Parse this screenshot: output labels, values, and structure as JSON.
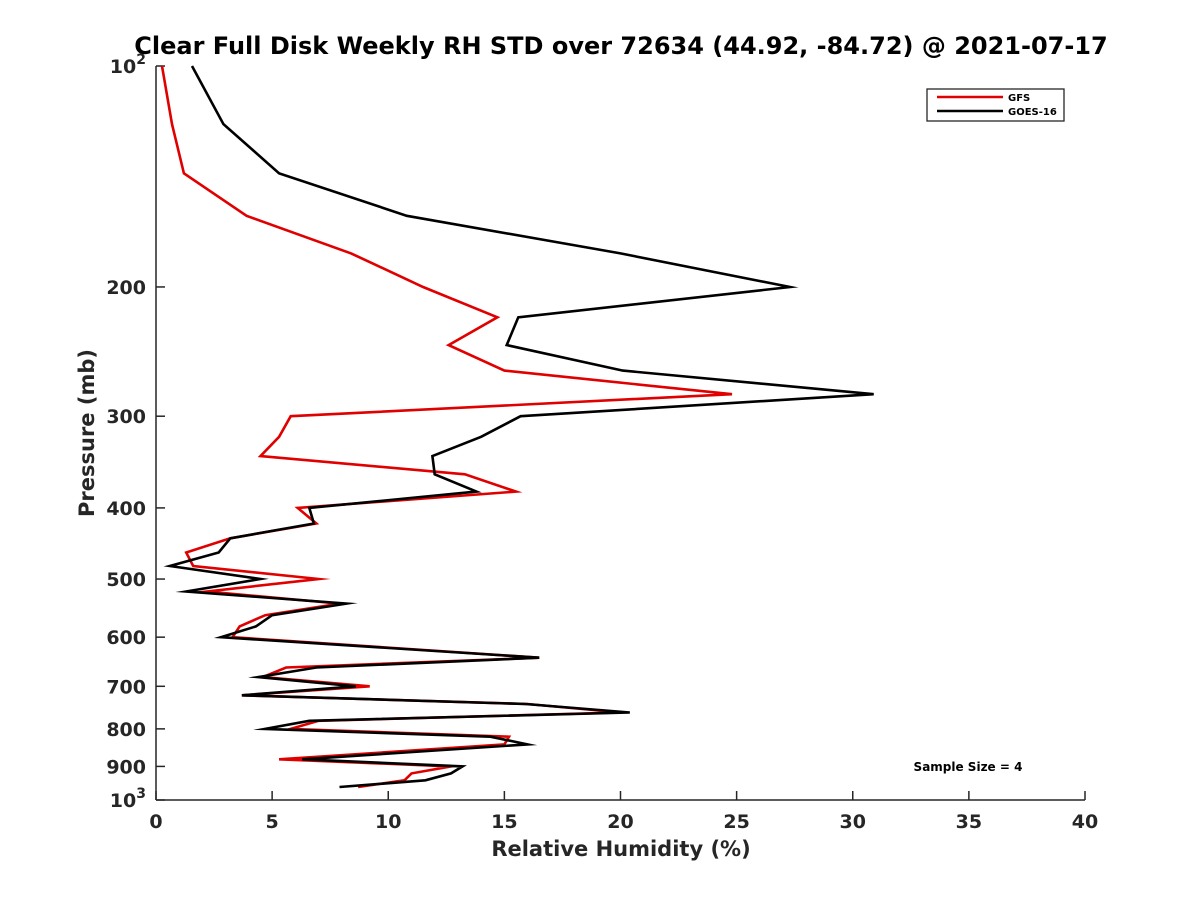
{
  "chart_data": {
    "type": "line",
    "title": "Clear Full Disk Weekly RH STD over 72634 (44.92, -84.72) @ 2021-07-17",
    "xlabel": "Relative Humidity (%)",
    "ylabel": "Pressure (mb)",
    "xlim": [
      0,
      40
    ],
    "ylim": [
      100,
      1000
    ],
    "yscale": "log",
    "yreversed": true,
    "grid": false,
    "x_ticks": [
      0,
      5,
      10,
      15,
      20,
      25,
      30,
      35,
      40
    ],
    "x_tick_labels": [
      "0",
      "5",
      "10",
      "15",
      "20",
      "25",
      "30",
      "35",
      "40"
    ],
    "y_ticks": [
      100,
      200,
      300,
      400,
      500,
      600,
      700,
      800,
      900,
      1000
    ],
    "y_tick_labels": [
      "10^2",
      "200",
      "300",
      "400",
      "500",
      "600",
      "700",
      "800",
      "900",
      "10^3"
    ],
    "legend_position": "top-right",
    "annotation": "Sample Size = 4",
    "series": [
      {
        "name": "GFS",
        "color": "#e00000",
        "pressure": [
          100,
          120,
          140,
          160,
          180,
          200,
          220,
          240,
          260,
          280,
          300,
          320,
          340,
          360,
          380,
          400,
          420,
          440,
          460,
          480,
          500,
          520,
          540,
          560,
          580,
          600,
          640,
          660,
          680,
          700,
          720,
          740,
          760,
          780,
          800,
          820,
          840,
          880,
          900,
          920,
          940,
          960
        ],
        "values": [
          0.26,
          0.69,
          1.2,
          3.9,
          8.4,
          11.5,
          14.7,
          12.6,
          15.0,
          24.8,
          5.8,
          5.3,
          4.5,
          13.3,
          15.5,
          6.1,
          6.9,
          3.2,
          1.3,
          1.6,
          7.0,
          2.2,
          7.9,
          4.7,
          3.6,
          3.3,
          16.5,
          5.6,
          4.6,
          9.2,
          3.7,
          16.0,
          20.0,
          7.0,
          5.8,
          15.2,
          15.0,
          5.3,
          12.7,
          11.0,
          10.7,
          8.7
        ]
      },
      {
        "name": "GOES-16",
        "color": "#000000",
        "pressure": [
          100,
          120,
          140,
          160,
          180,
          200,
          220,
          240,
          260,
          280,
          300,
          320,
          340,
          360,
          380,
          400,
          420,
          440,
          460,
          480,
          500,
          520,
          540,
          560,
          580,
          600,
          640,
          660,
          680,
          700,
          720,
          740,
          760,
          780,
          800,
          820,
          840,
          880,
          900,
          920,
          940,
          960
        ],
        "values": [
          1.55,
          2.9,
          5.3,
          10.8,
          20.0,
          27.3,
          15.6,
          15.1,
          20.1,
          30.9,
          15.7,
          14.0,
          11.9,
          12.0,
          13.8,
          6.6,
          6.8,
          3.2,
          2.7,
          0.6,
          4.5,
          1.3,
          8.2,
          5.0,
          4.3,
          2.8,
          16.5,
          6.9,
          4.4,
          8.6,
          3.7,
          15.9,
          20.4,
          6.6,
          4.7,
          14.4,
          16.0,
          6.3,
          13.2,
          12.7,
          11.6,
          7.9
        ]
      }
    ]
  }
}
